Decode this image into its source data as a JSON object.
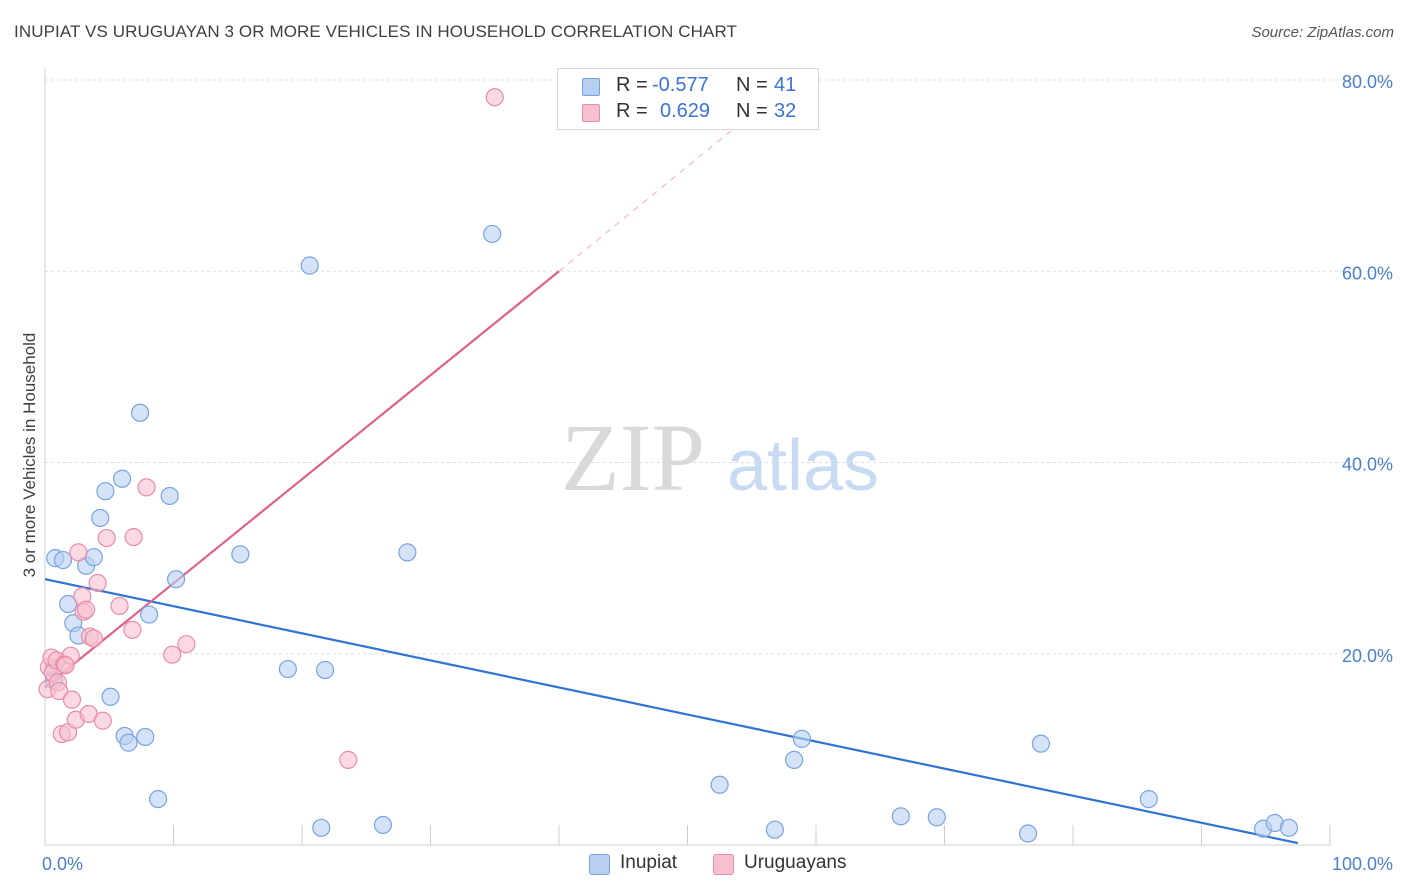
{
  "title": "INUPIAT VS URUGUAYAN 3 OR MORE VEHICLES IN HOUSEHOLD CORRELATION CHART",
  "source": "Source: ZipAtlas.com",
  "watermark": {
    "zip": "ZIP",
    "atlas": "atlas"
  },
  "colors": {
    "inupiat_fill": "#b7d0f2",
    "inupiat_stroke": "#7aa3de",
    "inupiat_line": "#2e74d0",
    "uruguayan_fill": "#f7c0cf",
    "uruguayan_stroke": "#e88ca8",
    "uruguayan_line": "#e0608a",
    "tick_label": "#4a7fcf",
    "grid": "#dedede"
  },
  "legend": {
    "rows": [
      {
        "r_label": "R =",
        "r_value": "-0.577",
        "n_label": "N =",
        "n_value": "41"
      },
      {
        "r_label": "R =",
        "r_value": "0.629",
        "n_label": "N =",
        "n_value": "32"
      }
    ]
  },
  "chart_data": {
    "type": "scatter",
    "title": "INUPIAT VS URUGUAYAN 3 OR MORE VEHICLES IN HOUSEHOLD CORRELATION CHART",
    "xlabel": "",
    "ylabel": "3 or more Vehicles in Household",
    "xlim": [
      0,
      100
    ],
    "ylim": [
      0,
      80
    ],
    "x_tick_labels": [
      {
        "value": 0,
        "label": "0.0%"
      },
      {
        "value": 100,
        "label": "100.0%"
      }
    ],
    "y_tick_labels": [
      {
        "value": 20,
        "label": "20.0%"
      },
      {
        "value": 40,
        "label": "40.0%"
      },
      {
        "value": 60,
        "label": "60.0%"
      },
      {
        "value": 80,
        "label": "80.0%"
      }
    ],
    "y_gridlines": [
      20,
      40,
      60,
      80
    ],
    "x_minor_ticks": [
      0,
      10,
      20,
      30,
      40,
      50,
      60,
      70,
      80,
      90,
      100
    ],
    "legend_position": "top-center",
    "series": [
      {
        "name": "Inupiat",
        "color_key": "inupiat",
        "points": [
          [
            0.7,
            18.5
          ],
          [
            0.7,
            17.2
          ],
          [
            0.8,
            30.0
          ],
          [
            1.4,
            29.8
          ],
          [
            1.8,
            25.2
          ],
          [
            2.2,
            23.2
          ],
          [
            2.6,
            21.9
          ],
          [
            3.2,
            29.2
          ],
          [
            3.8,
            30.1
          ],
          [
            4.3,
            34.2
          ],
          [
            4.7,
            37.0
          ],
          [
            5.1,
            15.5
          ],
          [
            6.0,
            38.3
          ],
          [
            6.2,
            11.4
          ],
          [
            6.5,
            10.7
          ],
          [
            7.4,
            45.2
          ],
          [
            7.8,
            11.3
          ],
          [
            8.1,
            24.1
          ],
          [
            8.8,
            4.8
          ],
          [
            9.7,
            36.5
          ],
          [
            10.2,
            27.8
          ],
          [
            15.2,
            30.4
          ],
          [
            18.9,
            18.4
          ],
          [
            20.6,
            60.6
          ],
          [
            21.5,
            1.8
          ],
          [
            21.8,
            18.3
          ],
          [
            26.3,
            2.1
          ],
          [
            28.2,
            30.6
          ],
          [
            34.8,
            63.9
          ],
          [
            52.5,
            6.3
          ],
          [
            56.8,
            1.6
          ],
          [
            58.3,
            8.9
          ],
          [
            58.9,
            11.1
          ],
          [
            66.6,
            3.0
          ],
          [
            69.4,
            2.9
          ],
          [
            76.5,
            1.2
          ],
          [
            77.5,
            10.6
          ],
          [
            85.9,
            4.8
          ],
          [
            94.8,
            1.7
          ],
          [
            95.7,
            2.3
          ],
          [
            96.8,
            1.8
          ]
        ],
        "trendline": {
          "x1": 0,
          "y1": 27.8,
          "x2": 97.5,
          "y2": 0.2
        }
      },
      {
        "name": "Uruguayans",
        "color_key": "uruguayan",
        "points": [
          [
            0.2,
            16.3
          ],
          [
            0.3,
            18.6
          ],
          [
            0.5,
            19.6
          ],
          [
            0.6,
            18.0
          ],
          [
            0.9,
            19.3
          ],
          [
            1.0,
            17.0
          ],
          [
            1.1,
            16.1
          ],
          [
            1.3,
            11.6
          ],
          [
            1.5,
            18.9
          ],
          [
            1.8,
            11.8
          ],
          [
            2.0,
            19.8
          ],
          [
            2.1,
            15.2
          ],
          [
            2.4,
            13.1
          ],
          [
            2.6,
            30.6
          ],
          [
            2.9,
            26.0
          ],
          [
            3.0,
            24.4
          ],
          [
            3.2,
            24.6
          ],
          [
            3.4,
            13.7
          ],
          [
            3.5,
            21.8
          ],
          [
            3.8,
            21.6
          ],
          [
            4.1,
            27.4
          ],
          [
            4.5,
            13.0
          ],
          [
            4.8,
            32.1
          ],
          [
            5.8,
            25.0
          ],
          [
            6.8,
            22.5
          ],
          [
            6.9,
            32.2
          ],
          [
            7.9,
            37.4
          ],
          [
            9.9,
            19.9
          ],
          [
            11.0,
            21.0
          ],
          [
            23.6,
            8.9
          ],
          [
            35.0,
            78.2
          ],
          [
            1.6,
            18.8
          ]
        ],
        "trendline": {
          "x1": 0,
          "y1": 16.5,
          "x2": 40.0,
          "y2": 60.0
        },
        "trendline_extension": {
          "x1": 40.0,
          "y1": 60.0,
          "x2": 53.5,
          "y2": 74.8
        }
      }
    ]
  },
  "bottom_legend": {
    "items": [
      {
        "label": "Inupiat"
      },
      {
        "label": "Uruguayans"
      }
    ]
  }
}
